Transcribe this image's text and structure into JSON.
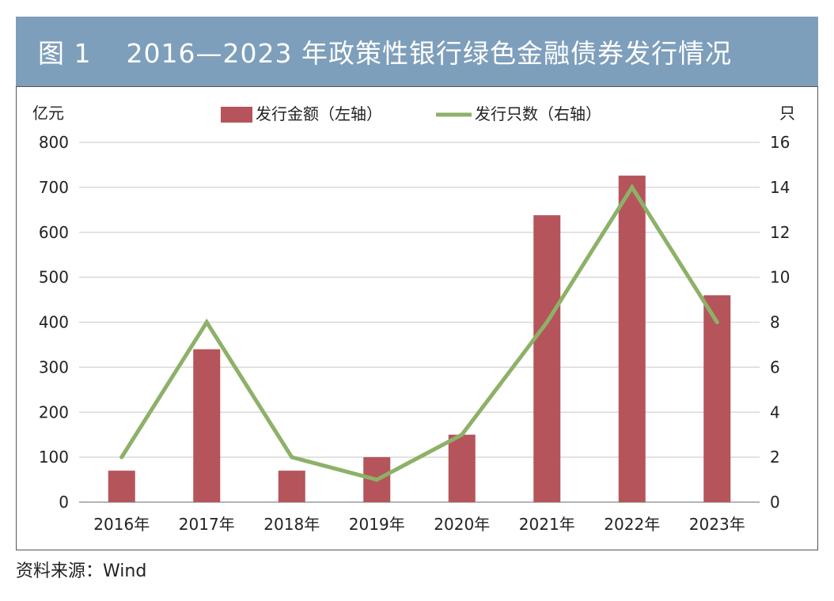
{
  "figure": {
    "number": "图 1",
    "title": "2016—2023 年政策性银行绿色金融债券发行情况",
    "source": "资料来源：Wind",
    "colors": {
      "title_bar": "#7e9fbb",
      "bar": "#b5545a",
      "line": "#8db168"
    }
  },
  "chart_data": {
    "type": "bar",
    "categories": [
      "2016年",
      "2017年",
      "2018年",
      "2019年",
      "2020年",
      "2021年",
      "2022年",
      "2023年"
    ],
    "series": [
      {
        "name": "发行金额（左轴）",
        "type": "bar",
        "axis": "left",
        "values": [
          70,
          340,
          70,
          100,
          150,
          638,
          726,
          460
        ]
      },
      {
        "name": "发行只数（右轴）",
        "type": "line",
        "axis": "right",
        "values": [
          2,
          8,
          2,
          1,
          3,
          8,
          14,
          8
        ]
      }
    ],
    "y_left": {
      "unit": "亿元",
      "ylim": [
        0,
        800
      ],
      "ticks": [
        0,
        100,
        200,
        300,
        400,
        500,
        600,
        700,
        800
      ]
    },
    "y_right": {
      "unit": "只",
      "ylim": [
        0,
        16
      ],
      "ticks": [
        0,
        2,
        4,
        6,
        8,
        10,
        12,
        14,
        16
      ]
    },
    "grid": true,
    "legend_position": "top"
  }
}
